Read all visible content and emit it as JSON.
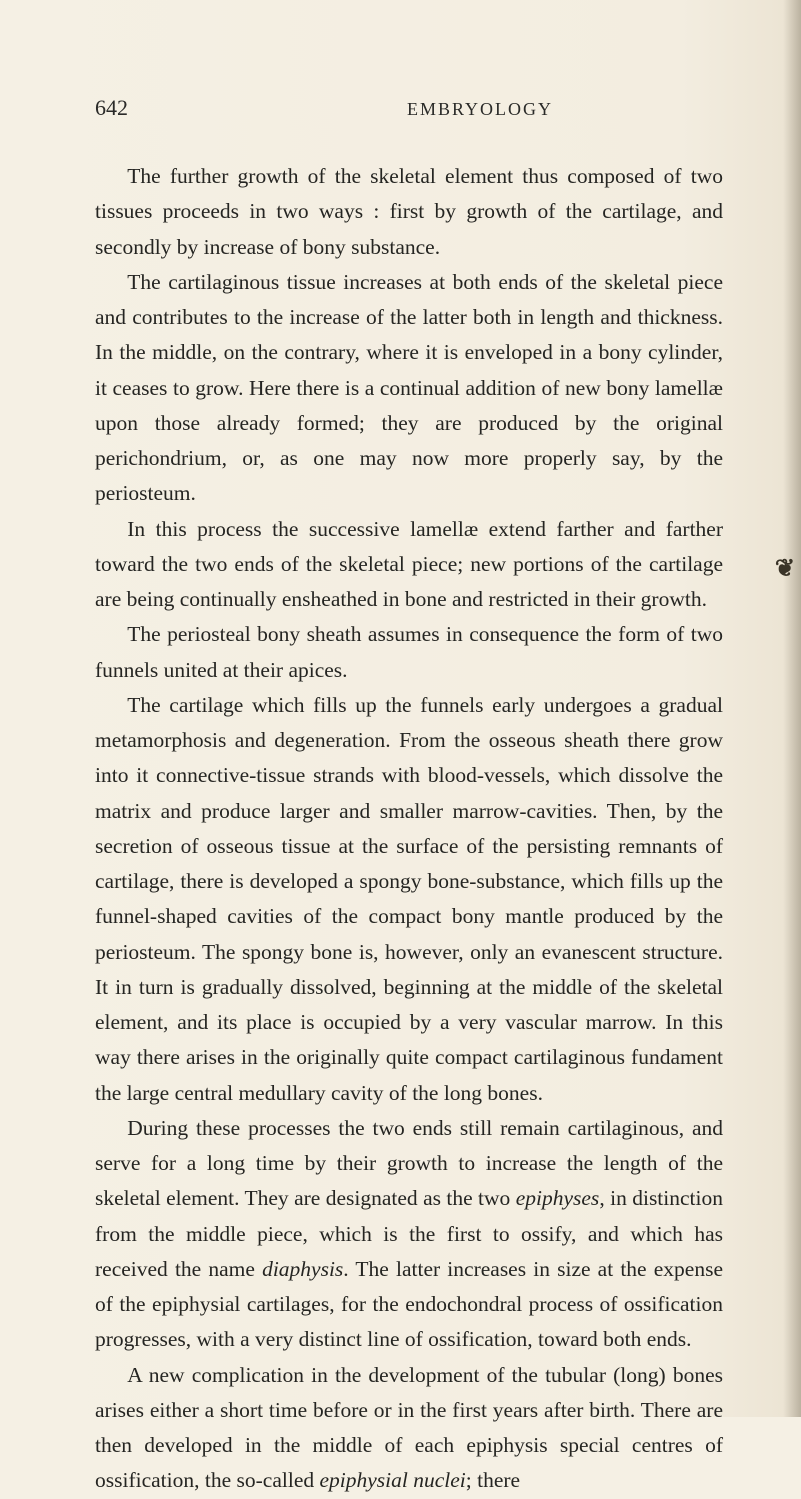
{
  "page": {
    "number": "642",
    "runningHead": "EMBRYOLOGY"
  },
  "paragraphs": {
    "p1": "The further growth of the skeletal element thus composed of two tissues proceeds in two ways : first by growth of the cartilage, and secondly by increase of bony substance.",
    "p2": "The cartilaginous tissue increases at both ends of the skeletal piece and contributes to the increase of the latter both in length and thickness. In the middle, on the contrary, where it is enveloped in a bony cylinder, it ceases to grow. Here there is a continual addition of new bony lamellæ upon those already formed; they are produced by the original perichondrium, or, as one may now more properly say, by the periosteum.",
    "p3": "In this process the successive lamellæ extend farther and farther toward the two ends of the skeletal piece; new portions of the cartilage are being continually ensheathed in bone and restricted in their growth.",
    "p4": "The periosteal bony sheath assumes in consequence the form of two funnels united at their apices.",
    "p5": "The cartilage which fills up the funnels early undergoes a gradual metamorphosis and degeneration. From the osseous sheath there grow into it connective-tissue strands with blood-vessels, which dissolve the matrix and produce larger and smaller marrow-cavities. Then, by the secretion of osseous tissue at the surface of the persisting remnants of cartilage, there is developed a spongy bone-substance, which fills up the funnel-shaped cavities of the compact bony mantle produced by the periosteum. The spongy bone is, however, only an evanescent structure. It in turn is gradually dissolved, beginning at the middle of the skeletal element, and its place is occupied by a very vascular marrow. In this way there arises in the originally quite compact cartilaginous fundament the large central medullary cavity of the long bones.",
    "p6a": "During these processes the two ends still remain cartilaginous, and serve for a long time by their growth to increase the length of the skeletal element. They are designated as the two ",
    "p6_em1": "epiphyses",
    "p6b": ", in distinction from the middle piece, which is the first to ossify, and which has received the name ",
    "p6_em2": "diaphysis",
    "p6c": ". The latter increases in size at the expense of the epiphysial cartilages, for the endochondral process of ossification progresses, with a very distinct line of ossification, toward both ends.",
    "p7a": "A new complication in the development of the tubular (long) bones arises either a short time before or in the first years after birth. There are then developed in the middle of each epiphysis special centres of ossification, the so-called ",
    "p7_em1": "epiphysial nuclei",
    "p7b": "; there"
  },
  "styling": {
    "backgroundColor": "#f5f0e4",
    "textColor": "#252522",
    "bodyFontSize": 21.5,
    "headerFontSize": 22,
    "runningHeadFontSize": 18,
    "lineHeight": 1.64,
    "pageWidth": 801,
    "pageHeight": 1417
  }
}
